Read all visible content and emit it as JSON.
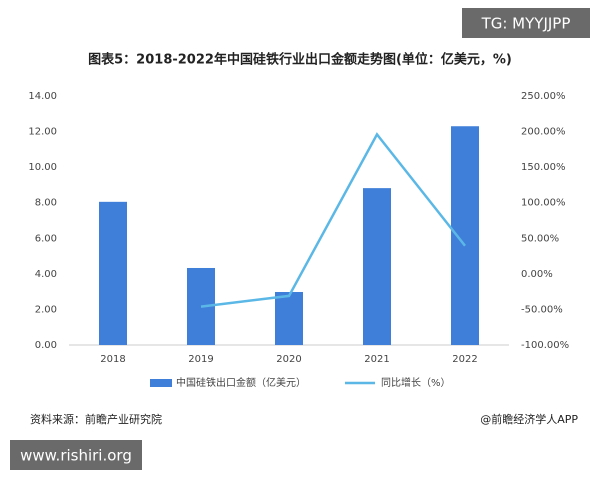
{
  "chart_data": {
    "type": "bar_line",
    "title": "图表5：2018-2022年中国硅铁行业出口金额走势图(单位：亿美元，%)",
    "categories": [
      "2018",
      "2019",
      "2020",
      "2021",
      "2022"
    ],
    "series": [
      {
        "name": "中国硅铁出口金额（亿美元）",
        "type": "bar",
        "color": "#3f7fd9",
        "values": [
          8.05,
          4.33,
          2.98,
          8.82,
          12.3
        ]
      },
      {
        "name": "同比增长（%）",
        "type": "line",
        "axis": "y2",
        "color": "#5bb8e6",
        "values": [
          null,
          -46,
          -31,
          196,
          39.5
        ]
      }
    ],
    "ylim": [
      0,
      14
    ],
    "yticks": [
      {
        "value": 0,
        "label": "0.00"
      },
      {
        "value": 2,
        "label": "2.00"
      },
      {
        "value": 4,
        "label": "4.00"
      },
      {
        "value": 6,
        "label": "6.00"
      },
      {
        "value": 8,
        "label": "8.00"
      },
      {
        "value": 10,
        "label": "10.00"
      },
      {
        "value": 12,
        "label": "12.00"
      },
      {
        "value": 14,
        "label": "14.00"
      }
    ],
    "y2lim": [
      -100,
      250
    ],
    "y2ticks": [
      {
        "value": -100,
        "label": "-100.00%"
      },
      {
        "value": -50,
        "label": "-50.00%"
      },
      {
        "value": 0,
        "label": "0.00%"
      },
      {
        "value": 50,
        "label": "50.00%"
      },
      {
        "value": 100,
        "label": "100.00%"
      },
      {
        "value": 150,
        "label": "150.00%"
      },
      {
        "value": 200,
        "label": "200.00%"
      },
      {
        "value": 250,
        "label": "250.00%"
      }
    ],
    "grid": false
  },
  "source": "资料来源：前瞻产业研究院",
  "credit": "@前瞻经济学人APP",
  "watermarks": [
    "TG: MYYJJPP",
    "www.rishiri.org"
  ]
}
